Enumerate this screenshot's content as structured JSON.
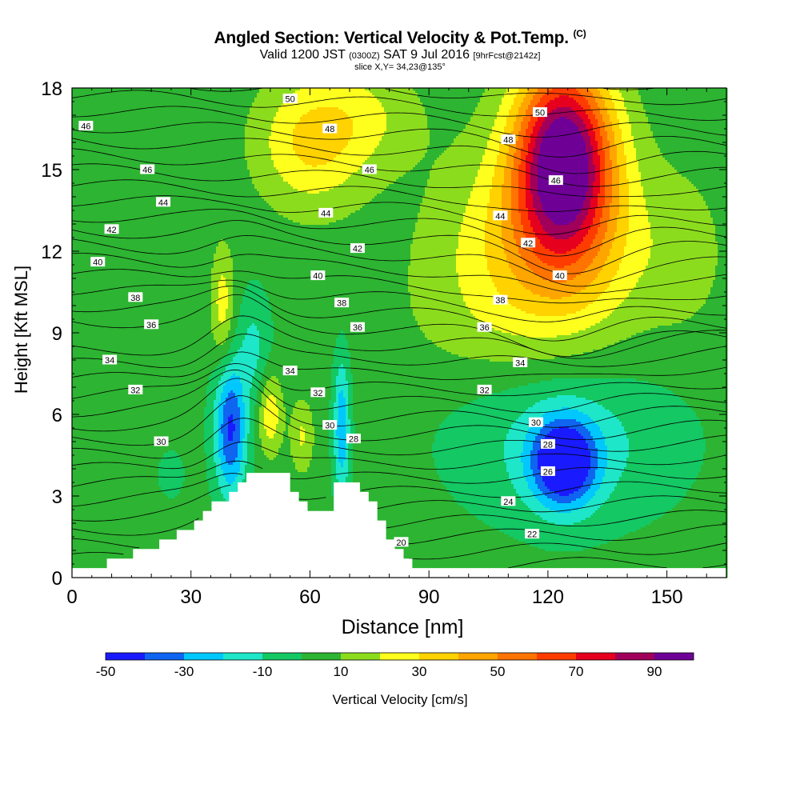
{
  "header": {
    "title_main": "Angled Section: Vertical Velocity & Pot.Temp.",
    "title_tag": "(C)",
    "valid_a": "Valid 1200 JST",
    "valid_b": "(0300Z)",
    "valid_c": "SAT 9 Jul 2016",
    "valid_d": "[9hrFcst@2142z]",
    "slice": "slice X,Y= 34,23@135°"
  },
  "chart_data": {
    "type": "heatmap",
    "xlabel": "Distance [nm]",
    "ylabel": "Height [Kft MSL]",
    "xlim": [
      0,
      165
    ],
    "ylim": [
      0,
      18
    ],
    "xticks": [
      0,
      30,
      60,
      90,
      120,
      150
    ],
    "yticks": [
      0,
      3,
      6,
      9,
      12,
      15,
      18
    ],
    "colorbar": {
      "label": "Vertical Velocity [cm/s]",
      "ticks": [
        -50,
        -30,
        -10,
        10,
        30,
        50,
        70,
        90
      ],
      "bin_edges": [
        -50,
        -40,
        -30,
        -20,
        -10,
        0,
        10,
        20,
        30,
        40,
        50,
        60,
        70,
        80,
        90,
        100
      ],
      "colors": [
        "#1a1aff",
        "#0f64f0",
        "#00c8ff",
        "#1ee6c8",
        "#14c864",
        "#2db432",
        "#8cdc1e",
        "#ffff1e",
        "#ffd200",
        "#ffa500",
        "#ff7300",
        "#ff3c00",
        "#e6001e",
        "#a0005a",
        "#6e0096"
      ]
    },
    "terrain": [
      {
        "x": 0,
        "h": 0.3
      },
      {
        "x": 10,
        "h": 0.6
      },
      {
        "x": 20,
        "h": 1.2
      },
      {
        "x": 30,
        "h": 1.8
      },
      {
        "x": 35,
        "h": 2.6
      },
      {
        "x": 38,
        "h": 3.0
      },
      {
        "x": 42,
        "h": 3.6
      },
      {
        "x": 45,
        "h": 3.9
      },
      {
        "x": 52,
        "h": 3.9
      },
      {
        "x": 55,
        "h": 3.3
      },
      {
        "x": 58,
        "h": 2.6
      },
      {
        "x": 62,
        "h": 2.3
      },
      {
        "x": 64,
        "h": 2.6
      },
      {
        "x": 65,
        "h": 3.6
      },
      {
        "x": 71,
        "h": 3.6
      },
      {
        "x": 74,
        "h": 2.9
      },
      {
        "x": 77,
        "h": 2.0
      },
      {
        "x": 80,
        "h": 1.4
      },
      {
        "x": 83,
        "h": 0.8
      },
      {
        "x": 88,
        "h": 0.3
      },
      {
        "x": 165,
        "h": 0.3
      }
    ],
    "isentrope_labels": [
      {
        "text": "50",
        "x": 55,
        "y": 17.6
      },
      {
        "text": "46",
        "x": 3.5,
        "y": 16.6
      },
      {
        "text": "48",
        "x": 65,
        "y": 16.5
      },
      {
        "text": "50",
        "x": 118,
        "y": 17.1
      },
      {
        "text": "48",
        "x": 110,
        "y": 16.1
      },
      {
        "text": "46",
        "x": 19,
        "y": 15.0
      },
      {
        "text": "46",
        "x": 75,
        "y": 15.0
      },
      {
        "text": "46",
        "x": 122,
        "y": 14.6
      },
      {
        "text": "44",
        "x": 23,
        "y": 13.8
      },
      {
        "text": "44",
        "x": 64,
        "y": 13.4
      },
      {
        "text": "44",
        "x": 108,
        "y": 13.3
      },
      {
        "text": "42",
        "x": 10,
        "y": 12.8
      },
      {
        "text": "42",
        "x": 72,
        "y": 12.1
      },
      {
        "text": "42",
        "x": 115,
        "y": 12.3
      },
      {
        "text": "40",
        "x": 6.5,
        "y": 11.6
      },
      {
        "text": "40",
        "x": 62,
        "y": 11.1
      },
      {
        "text": "40",
        "x": 123,
        "y": 11.1
      },
      {
        "text": "38",
        "x": 16,
        "y": 10.3
      },
      {
        "text": "38",
        "x": 68,
        "y": 10.1
      },
      {
        "text": "38",
        "x": 108,
        "y": 10.2
      },
      {
        "text": "36",
        "x": 20,
        "y": 9.3
      },
      {
        "text": "36",
        "x": 72,
        "y": 9.2
      },
      {
        "text": "36",
        "x": 104,
        "y": 9.2
      },
      {
        "text": "34",
        "x": 9.5,
        "y": 8.0
      },
      {
        "text": "34",
        "x": 55,
        "y": 7.6
      },
      {
        "text": "34",
        "x": 113,
        "y": 7.9
      },
      {
        "text": "32",
        "x": 16,
        "y": 6.9
      },
      {
        "text": "32",
        "x": 62,
        "y": 6.8
      },
      {
        "text": "32",
        "x": 104,
        "y": 6.9
      },
      {
        "text": "30",
        "x": 22.5,
        "y": 5.0
      },
      {
        "text": "30",
        "x": 65,
        "y": 5.6
      },
      {
        "text": "30",
        "x": 117,
        "y": 5.7
      },
      {
        "text": "28",
        "x": 71,
        "y": 5.1
      },
      {
        "text": "28",
        "x": 120,
        "y": 4.9
      },
      {
        "text": "26",
        "x": 120,
        "y": 3.9
      },
      {
        "text": "24",
        "x": 110,
        "y": 2.8
      },
      {
        "text": "22",
        "x": 116,
        "y": 1.6
      },
      {
        "text": "20",
        "x": 83,
        "y": 1.3
      }
    ]
  }
}
